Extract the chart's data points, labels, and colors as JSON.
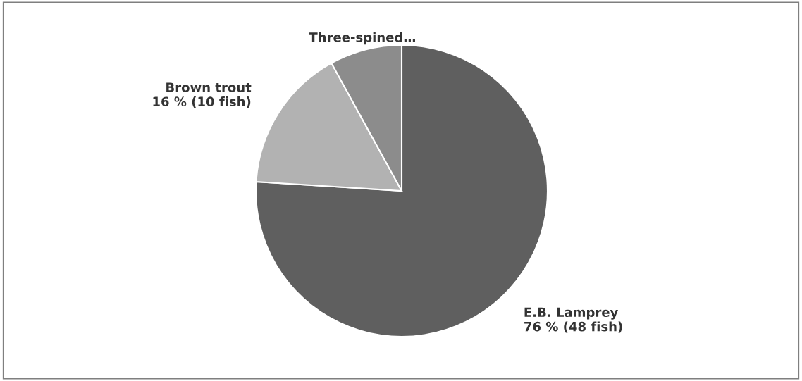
{
  "chart_data": {
    "type": "pie",
    "categories": [
      "E.B. Lamprey",
      "Brown trout",
      "Three-spined…"
    ],
    "values": [
      76,
      16,
      8
    ],
    "value_labels": [
      "76 % (48 fish)",
      "16 % (10 fish)",
      null
    ],
    "colors": [
      "#5f5f5f",
      "#b2b2b2",
      "#8c8c8c"
    ]
  }
}
